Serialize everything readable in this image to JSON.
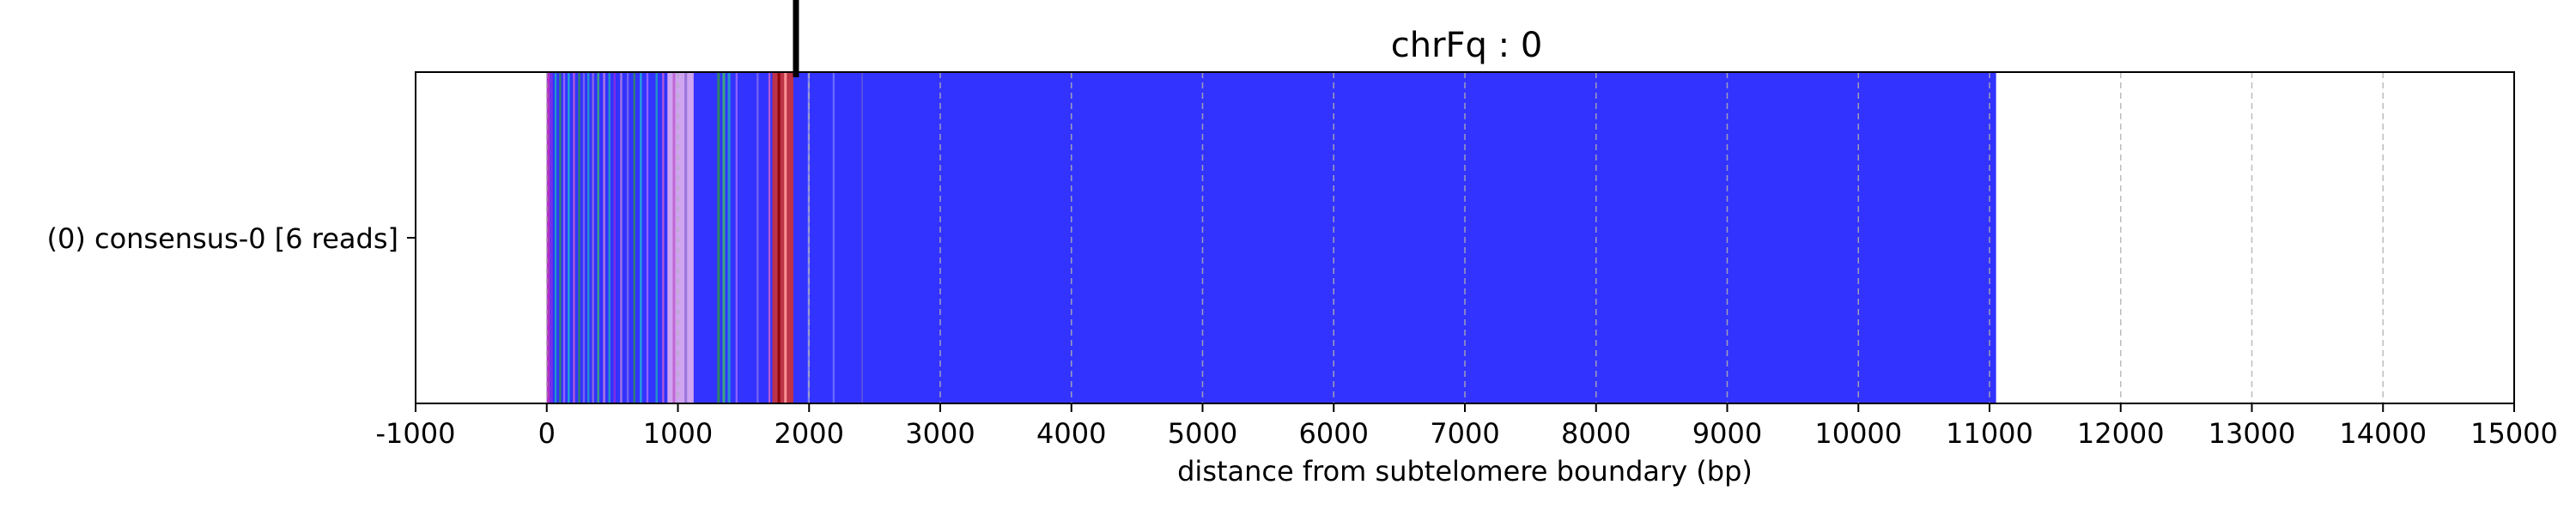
{
  "chart_data": {
    "type": "bar",
    "title": "chrFq : 0",
    "xlabel": "distance from subtelomere boundary (bp)",
    "ylabel": "",
    "xlim": [
      -1000,
      15000
    ],
    "x_ticks": [
      -1000,
      0,
      1000,
      2000,
      3000,
      4000,
      5000,
      6000,
      7000,
      8000,
      9000,
      10000,
      11000,
      12000,
      13000,
      14000,
      15000
    ],
    "tick_labels": [
      "-1000",
      "0",
      "1000",
      "2000",
      "3000",
      "4000",
      "5000",
      "6000",
      "7000",
      "8000",
      "9000",
      "10000",
      "11000",
      "12000",
      "13000",
      "14000",
      "15000"
    ],
    "grid": "vertical dashed",
    "categories": [
      "(0) consensus-0 [6 reads]"
    ],
    "read_extent": {
      "start": 0,
      "end": 11050
    },
    "base_color": "#3333ff",
    "boundary_marker": 1900,
    "segments": [
      {
        "start": 0,
        "end": 25,
        "color": "#c030c0"
      },
      {
        "start": 30,
        "end": 45,
        "color": "#8a2be2"
      },
      {
        "start": 60,
        "end": 75,
        "color": "#20a0c0"
      },
      {
        "start": 95,
        "end": 110,
        "color": "#2e8b57"
      },
      {
        "start": 125,
        "end": 140,
        "color": "#9966ff"
      },
      {
        "start": 160,
        "end": 175,
        "color": "#20b0d0"
      },
      {
        "start": 200,
        "end": 215,
        "color": "#c060d0"
      },
      {
        "start": 240,
        "end": 255,
        "color": "#2e8b57"
      },
      {
        "start": 275,
        "end": 290,
        "color": "#7b68ee"
      },
      {
        "start": 310,
        "end": 325,
        "color": "#20a0c0"
      },
      {
        "start": 345,
        "end": 360,
        "color": "#9370db"
      },
      {
        "start": 385,
        "end": 400,
        "color": "#3cb371"
      },
      {
        "start": 430,
        "end": 445,
        "color": "#c080e0"
      },
      {
        "start": 470,
        "end": 485,
        "color": "#20a0c0"
      },
      {
        "start": 510,
        "end": 525,
        "color": "#8a2be2"
      },
      {
        "start": 560,
        "end": 575,
        "color": "#b080e0"
      },
      {
        "start": 610,
        "end": 625,
        "color": "#7b68ee"
      },
      {
        "start": 660,
        "end": 675,
        "color": "#2e8b57"
      },
      {
        "start": 710,
        "end": 725,
        "color": "#20b0d0"
      },
      {
        "start": 760,
        "end": 775,
        "color": "#9966ff"
      },
      {
        "start": 830,
        "end": 845,
        "color": "#20a0c0"
      },
      {
        "start": 880,
        "end": 895,
        "color": "#c060d0"
      },
      {
        "start": 920,
        "end": 1120,
        "color": "#e0b0f0"
      },
      {
        "start": 960,
        "end": 980,
        "color": "#c060d0"
      },
      {
        "start": 1050,
        "end": 1070,
        "color": "#9370db"
      },
      {
        "start": 1300,
        "end": 1320,
        "color": "#2e8b57"
      },
      {
        "start": 1340,
        "end": 1360,
        "color": "#3cb371"
      },
      {
        "start": 1380,
        "end": 1400,
        "color": "#20a0c0"
      },
      {
        "start": 1440,
        "end": 1455,
        "color": "#9966ff"
      },
      {
        "start": 1600,
        "end": 1615,
        "color": "#7b68ee"
      },
      {
        "start": 1690,
        "end": 1705,
        "color": "#c060d0"
      },
      {
        "start": 1720,
        "end": 1880,
        "color": "#cc3333"
      },
      {
        "start": 1760,
        "end": 1780,
        "color": "#8b0000"
      },
      {
        "start": 1810,
        "end": 1830,
        "color": "#ff9999"
      },
      {
        "start": 1990,
        "end": 2005,
        "color": "#8888ff"
      },
      {
        "start": 2180,
        "end": 2195,
        "color": "#7070ff"
      },
      {
        "start": 2400,
        "end": 2410,
        "color": "#6a5acd"
      }
    ]
  }
}
